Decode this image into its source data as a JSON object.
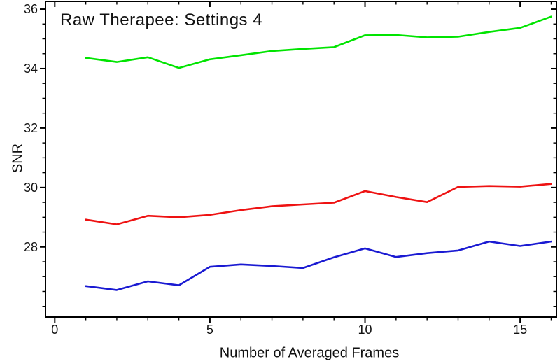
{
  "chart_data": {
    "type": "line",
    "title": "Raw Therapee: Settings 4",
    "xlabel": "Number of Averaged Frames",
    "ylabel": "SNR",
    "grid": false,
    "frame": true,
    "legend": "none",
    "xlim": [
      -0.3,
      16.17
    ],
    "ylim": [
      25.64,
      36.26
    ],
    "x": [
      1,
      2,
      3,
      4,
      5,
      6,
      7,
      8,
      9,
      10,
      11,
      12,
      13,
      14,
      15,
      16
    ],
    "series": [
      {
        "name": "green-series",
        "color": "#00e400",
        "values": [
          34.36,
          34.22,
          34.38,
          34.02,
          34.31,
          34.45,
          34.59,
          34.66,
          34.72,
          35.12,
          35.13,
          35.05,
          35.07,
          35.23,
          35.37,
          35.75
        ]
      },
      {
        "name": "red-series",
        "color": "#ee1212",
        "values": [
          28.92,
          28.76,
          29.05,
          29.0,
          29.08,
          29.24,
          29.37,
          29.43,
          29.49,
          29.88,
          29.68,
          29.51,
          30.02,
          30.05,
          30.03,
          30.12
        ]
      },
      {
        "name": "blue-series",
        "color": "#1a1ad2",
        "values": [
          26.68,
          26.55,
          26.84,
          26.71,
          27.33,
          27.41,
          27.36,
          27.29,
          27.65,
          27.95,
          27.66,
          27.79,
          27.88,
          28.18,
          28.03,
          28.18
        ]
      }
    ],
    "x_major_ticks": [
      0,
      5,
      10,
      15
    ],
    "x_major_tick_labels": [
      "0",
      "5",
      "10",
      "15"
    ],
    "x_minor_ticks": [
      1,
      2,
      3,
      4,
      6,
      7,
      8,
      9,
      11,
      12,
      13,
      14,
      16
    ],
    "y_major_ticks": [
      28,
      30,
      32,
      34,
      36
    ],
    "y_major_tick_labels": [
      "28",
      "30",
      "32",
      "34",
      "36"
    ],
    "y_minor_ticks": [
      26,
      26.5,
      27,
      27.5,
      28.5,
      29,
      29.5,
      30.5,
      31,
      31.5,
      32.5,
      33,
      33.5,
      34.5,
      35,
      35.5
    ],
    "axis_color": "#000000",
    "background_color": "#ffffff"
  }
}
